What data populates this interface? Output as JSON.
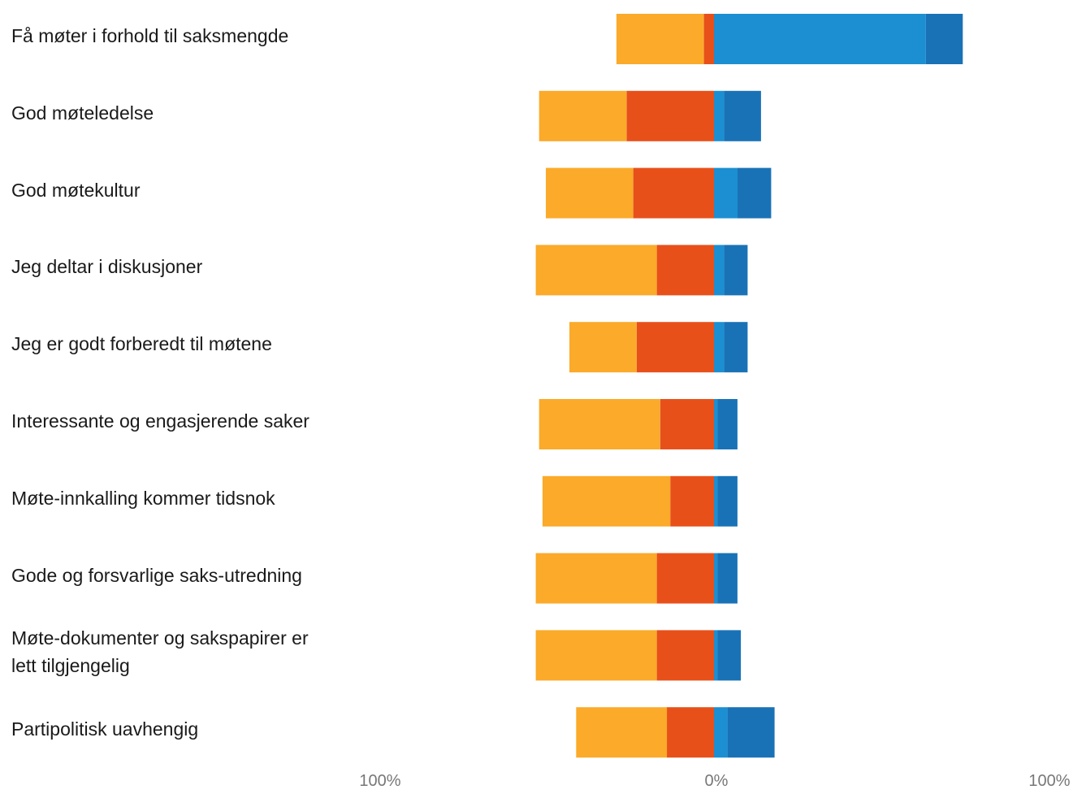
{
  "chart_data": {
    "type": "bar",
    "orientation": "horizontal",
    "stacked": "diverging",
    "categories": [
      "Få møter i forhold til saksmengde",
      "God møteledelse",
      "God møtekultur",
      "Jeg deltar i diskusjoner",
      "Jeg er godt forberedt til møtene",
      "Interessante og engasjerende saker",
      "Møte-innkalling kommer tidsnok",
      "Gode og forsvarlige saks-utredning",
      "Møte-dokumenter og sakspapirer er lett tilgjengelig",
      "Partipolitisk uavhengig"
    ],
    "category_lines": [
      [
        "Få møter i forhold til saksmengde"
      ],
      [
        "God møteledelse"
      ],
      [
        "God møtekultur"
      ],
      [
        "Jeg deltar i diskusjoner"
      ],
      [
        "Jeg er godt forberedt til møtene"
      ],
      [
        "Interessante og engasjerende saker"
      ],
      [
        "Møte-innkalling kommer tidsnok"
      ],
      [
        "Gode og forsvarlige saks-utredning"
      ],
      [
        "Møte-dokumenter og sakspapirer er",
        "lett tilgjengelig"
      ],
      [
        "Partipolitisk uavhengig"
      ]
    ],
    "series": [
      {
        "side": "negative",
        "color": "#e8501a",
        "values": [
          3,
          26,
          24,
          17,
          23,
          16,
          13,
          17,
          17,
          14
        ]
      },
      {
        "side": "negative",
        "color": "#fbaa2a",
        "values": [
          26,
          26,
          26,
          36,
          20,
          36,
          38,
          36,
          36,
          27
        ]
      },
      {
        "side": "positive",
        "color": "#1b8fd2",
        "values": [
          63,
          3,
          7,
          3,
          3,
          1,
          1,
          1,
          1,
          4
        ]
      },
      {
        "side": "positive",
        "color": "#1a72b6",
        "values": [
          11,
          11,
          10,
          7,
          7,
          6,
          6,
          6,
          7,
          14
        ]
      }
    ],
    "x_ticks": [
      "100%",
      "0%",
      "100%"
    ],
    "xlim": [
      -100,
      100
    ],
    "grid": false,
    "legend": "none"
  }
}
